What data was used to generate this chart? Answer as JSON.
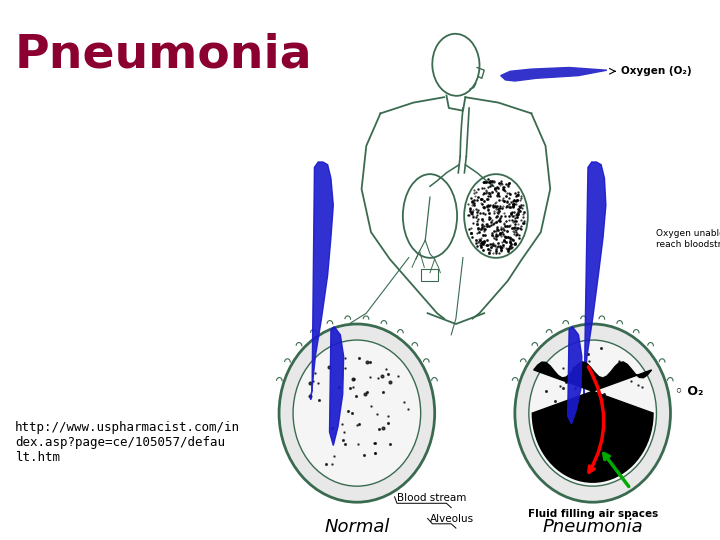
{
  "title": "Pneumonia",
  "title_color": "#8B0030",
  "title_fontsize": 34,
  "url_text": "http://www.uspharmacist.com/in\ndex.asp?page=ce/105057/defau\nlt.htm",
  "url_fontsize": 9,
  "url_color": "#000000",
  "bg_color": "#d4d4d8",
  "panel_split": 0.345,
  "body_color": "#3a6b50",
  "label_fontsize": 7,
  "normal_label": "Normal",
  "pneumonia_label": "Pneumonia",
  "blood_stream_label": "Blood stream",
  "alveolus_label": "Alveolus",
  "fluid_label": "Fluid filling air spaces",
  "oxygen_label": "Oxygen (O₂)",
  "unable_label": "Oxygen unable to\nreach bloodstream",
  "o2_label": "◦ O₂"
}
